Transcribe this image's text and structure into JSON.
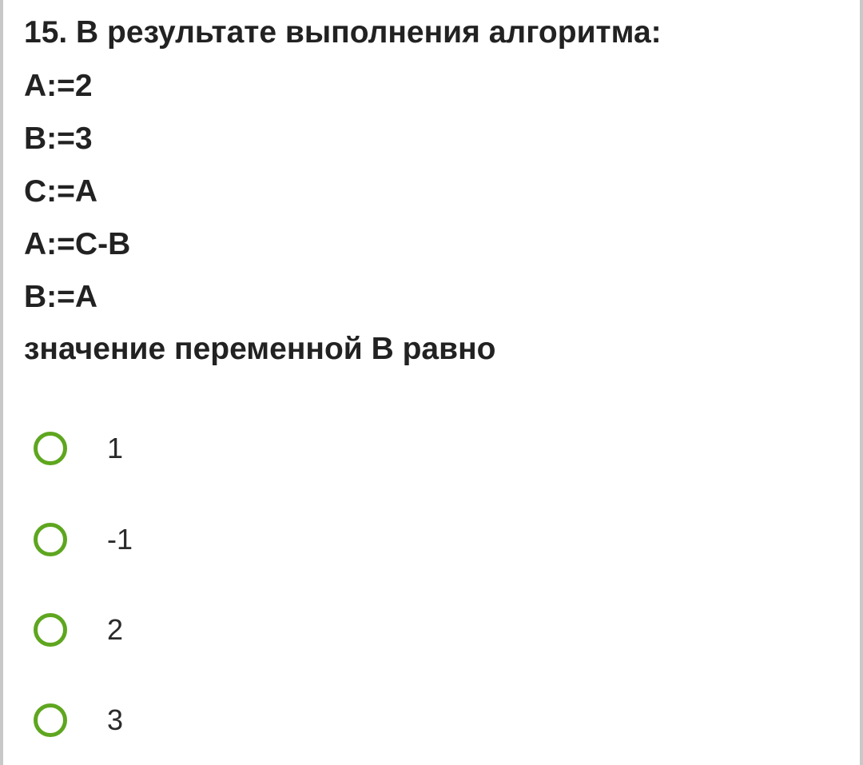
{
  "question": {
    "title": "15. В результате выполнения алгоритма:",
    "lines": [
      "A:=2",
      "B:=3",
      "C:=A",
      "A:=C-B",
      "B:=A"
    ],
    "prompt": "значение переменной B равно"
  },
  "options": [
    {
      "label": "1",
      "selected": false
    },
    {
      "label": "-1",
      "selected": false
    },
    {
      "label": "2",
      "selected": false
    },
    {
      "label": "3",
      "selected": false
    }
  ],
  "colors": {
    "radio": "#5ea61f",
    "text": "#222222"
  }
}
